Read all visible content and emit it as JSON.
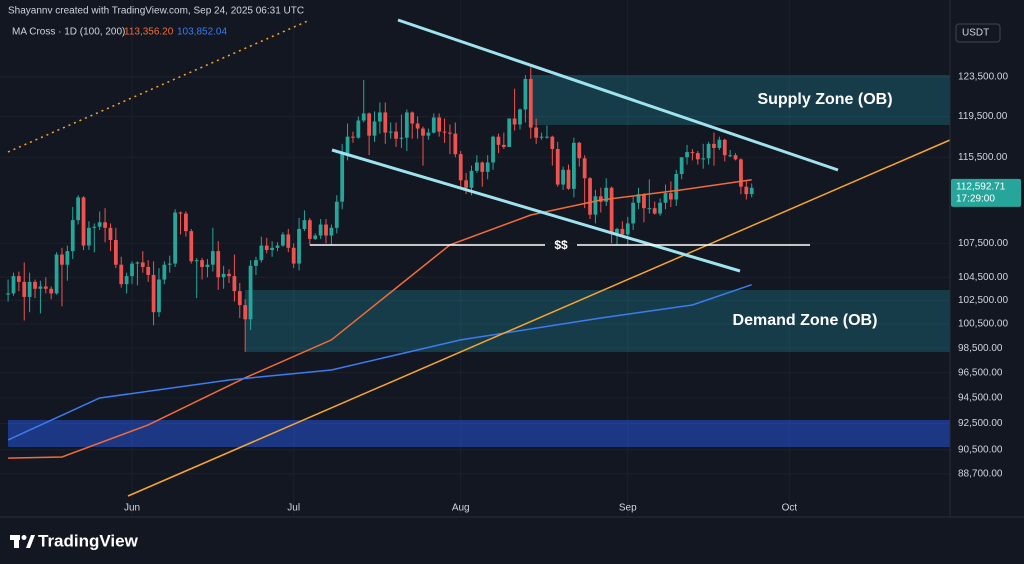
{
  "header": {
    "credit": "Shayannv created with TradingView.com, Sep 24, 2025 06:31 UTC",
    "indicator": "MA Cross · 1D (100, 200)",
    "currency": "USDT"
  },
  "footer": {
    "brand": "TradingView"
  },
  "annotations": {
    "supply": "Supply Zone (OB)",
    "demand": "Demand Zone (OB)",
    "liquidity": "$$"
  },
  "chart_data": {
    "type": "candlestick",
    "up_color": "#26a69a",
    "down_color": "#ef5350",
    "log_scale": true,
    "grid": true,
    "ylim": [
      85560,
      131690
    ],
    "xlim": [
      -1.5,
      174.8
    ],
    "yticks": [
      {
        "value": 123500,
        "label": "123,500.00"
      },
      {
        "value": 119500,
        "label": "119,500.00"
      },
      {
        "value": 115500,
        "label": "115,500.00"
      },
      {
        "value": 107500,
        "label": "107,500.00"
      },
      {
        "value": 104500,
        "label": "104,500.00"
      },
      {
        "value": 102500,
        "label": "102,500.00"
      },
      {
        "value": 100500,
        "label": "100,500.00"
      },
      {
        "value": 98500,
        "label": "98,500.00"
      },
      {
        "value": 96500,
        "label": "96,500.00"
      },
      {
        "value": 94500,
        "label": "94,500.00"
      },
      {
        "value": 92500,
        "label": "92,500.00"
      },
      {
        "value": 90500,
        "label": "90,500.00"
      },
      {
        "value": 88700,
        "label": "88,700.00"
      }
    ],
    "xticks": [
      {
        "value": 23,
        "label": "Jun"
      },
      {
        "value": 53,
        "label": "Jul"
      },
      {
        "value": 84,
        "label": "Aug"
      },
      {
        "value": 115,
        "label": "Sep"
      },
      {
        "value": 145,
        "label": "Oct"
      }
    ],
    "last_price": {
      "value": 112592.71,
      "label": "112,592.71"
    },
    "countdown": "17:29:00",
    "candles": [
      [
        103000,
        104300,
        102400,
        103100
      ],
      [
        103100,
        104900,
        102900,
        104600
      ],
      [
        104600,
        105000,
        103300,
        104100
      ],
      [
        104100,
        105800,
        100800,
        102800
      ],
      [
        102800,
        104900,
        101500,
        104100
      ],
      [
        104100,
        104300,
        102700,
        103500
      ],
      [
        103500,
        104200,
        101400,
        103700
      ],
      [
        103700,
        104500,
        103100,
        103500
      ],
      [
        103500,
        103700,
        102600,
        103100
      ],
      [
        103100,
        106700,
        103000,
        106500
      ],
      [
        106500,
        107100,
        102000,
        105600
      ],
      [
        105600,
        107300,
        104200,
        106800
      ],
      [
        106800,
        110800,
        106100,
        109600
      ],
      [
        109600,
        111900,
        109200,
        111700
      ],
      [
        111700,
        111800,
        106900,
        107300
      ],
      [
        107300,
        109500,
        106900,
        108900
      ],
      [
        108900,
        109300,
        106700,
        109000
      ],
      [
        109000,
        110400,
        108700,
        109400
      ],
      [
        109400,
        110700,
        107600,
        108900
      ],
      [
        108900,
        109300,
        106800,
        107800
      ],
      [
        107800,
        108900,
        105300,
        105600
      ],
      [
        105600,
        106300,
        103600,
        103900
      ],
      [
        103900,
        104900,
        103100,
        104600
      ],
      [
        104600,
        105900,
        103900,
        105700
      ],
      [
        105700,
        105900,
        103800,
        105800
      ],
      [
        105800,
        106800,
        104900,
        105400
      ],
      [
        105400,
        106000,
        104100,
        104700
      ],
      [
        104700,
        105900,
        100400,
        101500
      ],
      [
        101500,
        105300,
        101100,
        104300
      ],
      [
        104300,
        105900,
        103900,
        105600
      ],
      [
        105600,
        106400,
        104900,
        105700
      ],
      [
        105700,
        110600,
        105400,
        110300
      ],
      [
        110300,
        110400,
        108300,
        110200
      ],
      [
        110200,
        110400,
        108100,
        108600
      ],
      [
        108600,
        108800,
        105700,
        105900
      ],
      [
        105900,
        106200,
        102700,
        106000
      ],
      [
        106000,
        106200,
        104300,
        105400
      ],
      [
        105400,
        106100,
        104500,
        105600
      ],
      [
        105600,
        108900,
        105000,
        106800
      ],
      [
        106800,
        107700,
        103400,
        104500
      ],
      [
        104500,
        105500,
        103500,
        104800
      ],
      [
        104800,
        105200,
        104000,
        104600
      ],
      [
        104600,
        106500,
        102400,
        103300
      ],
      [
        103300,
        104000,
        101000,
        102100
      ],
      [
        102100,
        102600,
        98200,
        100900
      ],
      [
        100900,
        106000,
        100000,
        105500
      ],
      [
        105500,
        106300,
        104700,
        106000
      ],
      [
        106000,
        108100,
        105800,
        107300
      ],
      [
        107300,
        108000,
        106600,
        106900
      ],
      [
        106900,
        107700,
        106300,
        107100
      ],
      [
        107100,
        107600,
        106800,
        107300
      ],
      [
        107300,
        108500,
        107200,
        108300
      ],
      [
        108300,
        108800,
        106700,
        107100
      ],
      [
        107100,
        107500,
        105300,
        105700
      ],
      [
        105700,
        109800,
        105100,
        108800
      ],
      [
        108800,
        110500,
        108600,
        109600
      ],
      [
        109600,
        109800,
        107300,
        107900
      ],
      [
        107900,
        108400,
        107800,
        108200
      ],
      [
        108200,
        109700,
        107900,
        109200
      ],
      [
        109200,
        109700,
        107500,
        108200
      ],
      [
        108200,
        109200,
        107400,
        108900
      ],
      [
        108900,
        111900,
        108400,
        111300
      ],
      [
        111300,
        116800,
        110600,
        115900
      ],
      [
        115900,
        118800,
        115200,
        117500
      ],
      [
        117500,
        118000,
        116900,
        117400
      ],
      [
        117400,
        119500,
        117300,
        119100
      ],
      [
        119100,
        123200,
        118900,
        119800
      ],
      [
        119800,
        119900,
        115700,
        117600
      ],
      [
        117600,
        120000,
        117000,
        119000
      ],
      [
        119000,
        120900,
        117800,
        119900
      ],
      [
        119900,
        120900,
        116800,
        117900
      ],
      [
        117900,
        118900,
        117300,
        118000
      ],
      [
        118000,
        118900,
        116500,
        117300
      ],
      [
        117300,
        119700,
        116400,
        117400
      ],
      [
        117400,
        120200,
        116100,
        119900
      ],
      [
        119900,
        120000,
        117300,
        118800
      ],
      [
        118800,
        119500,
        117300,
        118300
      ],
      [
        118300,
        118500,
        114700,
        117600
      ],
      [
        117600,
        118300,
        117200,
        117900
      ],
      [
        117900,
        119800,
        117800,
        119400
      ],
      [
        119400,
        119800,
        117500,
        118000
      ],
      [
        118000,
        119300,
        116900,
        117900
      ],
      [
        117900,
        118700,
        115800,
        117800
      ],
      [
        117800,
        118900,
        115500,
        115800
      ],
      [
        115800,
        116100,
        112700,
        113300
      ],
      [
        113300,
        114000,
        112000,
        112600
      ],
      [
        112600,
        114700,
        111900,
        114200
      ],
      [
        114200,
        115700,
        114000,
        115000
      ],
      [
        115000,
        115100,
        112700,
        114100
      ],
      [
        114100,
        115700,
        113400,
        115000
      ],
      [
        115000,
        117600,
        114300,
        117500
      ],
      [
        117500,
        117800,
        115900,
        116700
      ],
      [
        116700,
        117900,
        116300,
        116500
      ],
      [
        116500,
        119300,
        116500,
        119300
      ],
      [
        119300,
        122300,
        118100,
        118700
      ],
      [
        118700,
        120300,
        118200,
        120200
      ],
      [
        120200,
        123700,
        118900,
        123300
      ],
      [
        123300,
        124500,
        117300,
        118400
      ],
      [
        118400,
        119300,
        116800,
        117400
      ],
      [
        117400,
        117900,
        117200,
        117500
      ],
      [
        117500,
        118600,
        117300,
        117500
      ],
      [
        117500,
        117600,
        114700,
        116300
      ],
      [
        116300,
        117000,
        112700,
        112900
      ],
      [
        112900,
        114600,
        112400,
        114300
      ],
      [
        114300,
        114800,
        112400,
        112500
      ],
      [
        112500,
        117400,
        111700,
        116900
      ],
      [
        116900,
        117000,
        114600,
        115400
      ],
      [
        115400,
        115700,
        110700,
        113500
      ],
      [
        113500,
        113600,
        109700,
        110100
      ],
      [
        110100,
        112400,
        109300,
        111800
      ],
      [
        111800,
        112600,
        110300,
        111300
      ],
      [
        111300,
        113500,
        110900,
        112600
      ],
      [
        112600,
        112700,
        107500,
        108400
      ],
      [
        108400,
        108900,
        107400,
        108800
      ],
      [
        108800,
        109500,
        108000,
        108300
      ],
      [
        108300,
        109900,
        107300,
        109300
      ],
      [
        109300,
        111800,
        108700,
        111200
      ],
      [
        111200,
        112600,
        110600,
        112000
      ],
      [
        112000,
        112100,
        109400,
        110700
      ],
      [
        110700,
        113400,
        110200,
        110700
      ],
      [
        110700,
        111300,
        110100,
        110200
      ],
      [
        110200,
        111600,
        110000,
        111200
      ],
      [
        111200,
        112900,
        110600,
        112100
      ],
      [
        112100,
        113200,
        110800,
        111500
      ],
      [
        111500,
        114300,
        110900,
        113900
      ],
      [
        113900,
        115500,
        113400,
        115500
      ],
      [
        115500,
        116700,
        114800,
        116000
      ],
      [
        116000,
        116300,
        115200,
        115900
      ],
      [
        115900,
        116100,
        114800,
        115300
      ],
      [
        115300,
        116800,
        114400,
        115400
      ],
      [
        115400,
        117000,
        114800,
        116800
      ],
      [
        116800,
        117900,
        114700,
        116400
      ],
      [
        116400,
        117500,
        116200,
        117200
      ],
      [
        117200,
        117300,
        115100,
        115700
      ],
      [
        115700,
        116200,
        115500,
        115700
      ],
      [
        115700,
        115900,
        115200,
        115300
      ],
      [
        115300,
        115400,
        112000,
        112700
      ],
      [
        112700,
        113300,
        111500,
        112000
      ],
      [
        112000,
        113000,
        111700,
        112592.71
      ]
    ],
    "series": [
      {
        "name": "MA 100",
        "color": "#f26b38",
        "x": [
          0,
          10,
          26,
          44,
          60,
          82,
          97,
          110,
          125,
          138
        ],
        "values": [
          89870,
          89950,
          92390,
          96090,
          99180,
          107360,
          110070,
          111460,
          112400,
          113356.2
        ],
        "last": {
          "value": 113356.2,
          "label": "113,356.20"
        }
      },
      {
        "name": "MA 200",
        "color": "#3d7bf0",
        "x": [
          0,
          17,
          41,
          60,
          84,
          110,
          127,
          138
        ],
        "values": [
          91240,
          94490,
          95920,
          96720,
          99180,
          101010,
          102110,
          103852.04
        ],
        "last": {
          "value": 103852.04,
          "label": "103,852.04"
        }
      }
    ]
  }
}
